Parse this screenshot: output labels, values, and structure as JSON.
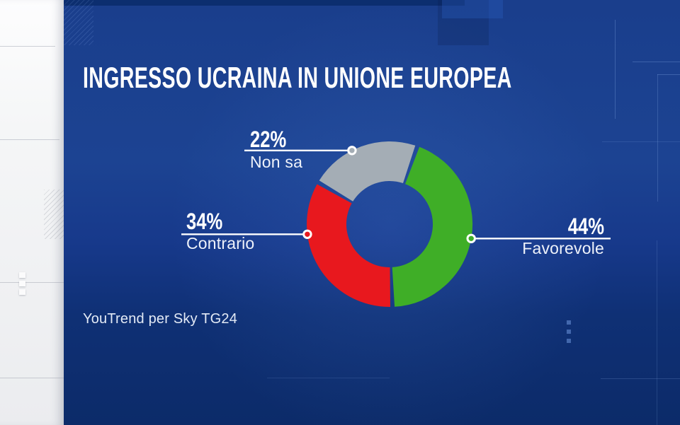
{
  "header": {
    "title": "INGRESSO UCRAINA IN UNIONE EUROPEA"
  },
  "source": {
    "credit": "YouTrend per Sky TG24"
  },
  "chart_data": {
    "type": "pie",
    "variant": "donut",
    "title": "INGRESSO UCRAINA IN UNIONE EUROPEA",
    "source": "YouTrend per Sky TG24",
    "units": "%",
    "start_angle_deg": 19.6,
    "legend_position": "callouts",
    "segments": [
      {
        "label": "Favorevole",
        "value": 44,
        "percent_label": "44%",
        "color": "#3fae27",
        "label_angle_deg": 100,
        "label_side": "right"
      },
      {
        "label": "Contrario",
        "value": 34,
        "percent_label": "34%",
        "color": "#e8181e",
        "label_angle_deg": 263,
        "label_side": "left"
      },
      {
        "label": "Non sa",
        "value": 22,
        "percent_label": "22%",
        "color": "#a4adb5",
        "label_angle_deg": 333,
        "label_side": "left"
      }
    ]
  },
  "colors": {
    "panel_blue": "#1b4190",
    "panel_blue_dark": "#0d2d6e",
    "callout_line": "#ffffff",
    "title_text": "#ffffff",
    "label_text": "#eef2fa"
  }
}
